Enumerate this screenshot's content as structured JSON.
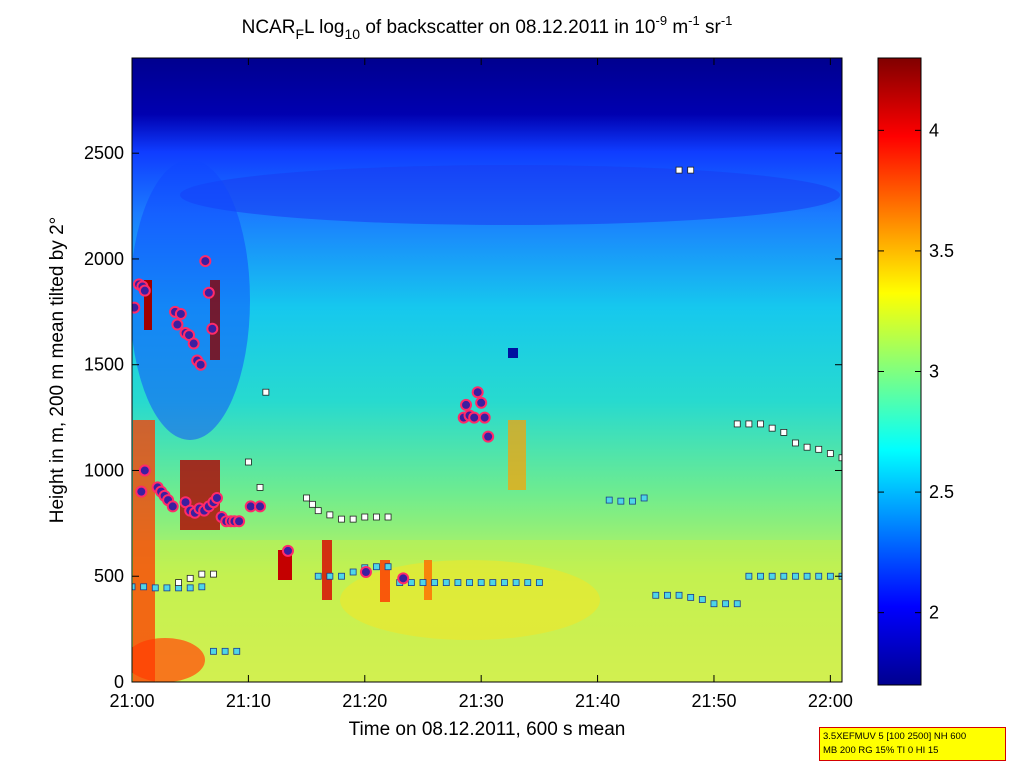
{
  "chart_data": {
    "type": "heatmap",
    "title": {
      "prefix": "NCAR",
      "sub": "F",
      "l": "L log",
      "logbase": "10",
      "mid": " of backscatter on 08.12.2011 in 10",
      "exp1": "-9",
      "unit1": " m",
      "exp2": "-1",
      "unit2": " sr",
      "exp3": "-1"
    },
    "xlabel": "Time on 08.12.2011, 600 s mean",
    "ylabel": "Height in m, 200 m mean tilted by 2°",
    "x_ticks": [
      "21:00",
      "21:10",
      "21:20",
      "21:30",
      "21:40",
      "21:50",
      "22:00"
    ],
    "x_tick_minutes": [
      0,
      10,
      20,
      30,
      40,
      50,
      60
    ],
    "xlim_minutes": [
      0,
      61
    ],
    "y_ticks": [
      0,
      500,
      1000,
      1500,
      2000,
      2500
    ],
    "ylim": [
      0,
      2950
    ],
    "colorbar": {
      "ticks": [
        "2",
        "2.5",
        "3",
        "3.5",
        "4"
      ],
      "tick_values": [
        2,
        2.5,
        3,
        3.5,
        4
      ],
      "range": [
        1.7,
        4.3
      ],
      "colormap": "jet"
    },
    "layers": {
      "purple_circles": [
        [
          0.2,
          1770
        ],
        [
          0.6,
          1880
        ],
        [
          0.9,
          1870
        ],
        [
          1.1,
          1850
        ],
        [
          0.8,
          900
        ],
        [
          1.1,
          1000
        ],
        [
          2.2,
          920
        ],
        [
          2.5,
          900
        ],
        [
          2.8,
          880
        ],
        [
          3.1,
          860
        ],
        [
          3.5,
          830
        ],
        [
          3.7,
          1750
        ],
        [
          3.9,
          1690
        ],
        [
          4.2,
          1740
        ],
        [
          4.6,
          1650
        ],
        [
          4.9,
          1640
        ],
        [
          5.3,
          1600
        ],
        [
          5.6,
          1520
        ],
        [
          5.9,
          1500
        ],
        [
          6.3,
          1990
        ],
        [
          6.6,
          1840
        ],
        [
          6.9,
          1670
        ],
        [
          4.6,
          850
        ],
        [
          5.0,
          810
        ],
        [
          5.4,
          800
        ],
        [
          5.8,
          820
        ],
        [
          6.2,
          810
        ],
        [
          6.6,
          830
        ],
        [
          7.0,
          850
        ],
        [
          7.3,
          870
        ],
        [
          7.7,
          780
        ],
        [
          8.1,
          760
        ],
        [
          8.5,
          760
        ],
        [
          8.8,
          760
        ],
        [
          9.2,
          760
        ],
        [
          10.2,
          830
        ],
        [
          11.0,
          830
        ],
        [
          13.4,
          620
        ],
        [
          20.1,
          520
        ],
        [
          23.3,
          490
        ],
        [
          28.5,
          1250
        ],
        [
          28.7,
          1310
        ],
        [
          29.0,
          1260
        ],
        [
          29.4,
          1250
        ],
        [
          29.7,
          1370
        ],
        [
          30.0,
          1320
        ],
        [
          30.3,
          1250
        ],
        [
          30.6,
          1160
        ]
      ],
      "cyan_markers": [
        [
          0,
          450
        ],
        [
          1,
          450
        ],
        [
          2,
          445
        ],
        [
          3,
          445
        ],
        [
          4,
          445
        ],
        [
          5,
          445
        ],
        [
          6,
          450
        ],
        [
          7,
          145
        ],
        [
          8,
          145
        ],
        [
          9,
          145
        ],
        [
          16,
          500
        ],
        [
          17,
          500
        ],
        [
          18,
          500
        ],
        [
          19,
          520
        ],
        [
          20,
          540
        ],
        [
          21,
          545
        ],
        [
          22,
          545
        ],
        [
          23,
          470
        ],
        [
          24,
          470
        ],
        [
          25,
          470
        ],
        [
          26,
          470
        ],
        [
          27,
          470
        ],
        [
          28,
          470
        ],
        [
          29,
          470
        ],
        [
          30,
          470
        ],
        [
          31,
          470
        ],
        [
          32,
          470
        ],
        [
          33,
          470
        ],
        [
          34,
          470
        ],
        [
          35,
          470
        ],
        [
          41,
          860
        ],
        [
          42,
          855
        ],
        [
          43,
          855
        ],
        [
          44,
          870
        ],
        [
          45,
          410
        ],
        [
          46,
          410
        ],
        [
          47,
          410
        ],
        [
          48,
          400
        ],
        [
          49,
          390
        ],
        [
          50,
          370
        ],
        [
          51,
          370
        ],
        [
          52,
          370
        ],
        [
          53,
          500
        ],
        [
          54,
          500
        ],
        [
          55,
          500
        ],
        [
          56,
          500
        ],
        [
          57,
          500
        ],
        [
          58,
          500
        ],
        [
          59,
          500
        ],
        [
          60,
          500
        ],
        [
          61,
          500
        ]
      ],
      "white_markers": [
        [
          4,
          470
        ],
        [
          5,
          490
        ],
        [
          6,
          510
        ],
        [
          7,
          510
        ],
        [
          10,
          1040
        ],
        [
          11,
          920
        ],
        [
          11.5,
          1370
        ],
        [
          15,
          870
        ],
        [
          15.5,
          840
        ],
        [
          16,
          810
        ],
        [
          17,
          790
        ],
        [
          18,
          770
        ],
        [
          19,
          770
        ],
        [
          20,
          780
        ],
        [
          21,
          780
        ],
        [
          22,
          780
        ],
        [
          47,
          2420
        ],
        [
          48,
          2420
        ],
        [
          52,
          1220
        ],
        [
          53,
          1220
        ],
        [
          54,
          1220
        ],
        [
          55,
          1200
        ],
        [
          56,
          1180
        ],
        [
          57,
          1130
        ],
        [
          58,
          1110
        ],
        [
          59,
          1100
        ],
        [
          60,
          1080
        ],
        [
          61,
          1060
        ]
      ]
    }
  },
  "info_box": {
    "line1": "3.5XEFMUV 5 [100 2500] NH 600",
    "line2": "MB 200 RG 15% TI 0 HI 15"
  }
}
